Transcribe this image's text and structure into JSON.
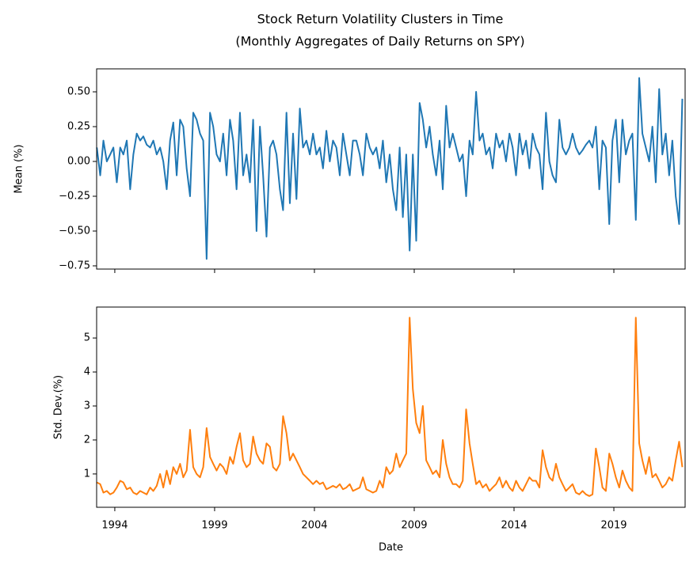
{
  "chart_data": [
    {
      "type": "line",
      "title": "Stock Return Volatility Clusters in Time",
      "subtitle": "(Monthly Aggregates of Daily Returns on SPY)",
      "ylabel": "Mean (%)",
      "x": [
        1993.1,
        1993.27,
        1993.43,
        1993.6,
        1993.77,
        1993.93,
        1994.1,
        1994.27,
        1994.43,
        1994.6,
        1994.77,
        1994.93,
        1995.1,
        1995.27,
        1995.43,
        1995.6,
        1995.77,
        1995.93,
        1996.1,
        1996.27,
        1996.43,
        1996.6,
        1996.77,
        1996.93,
        1997.1,
        1997.27,
        1997.43,
        1997.6,
        1997.77,
        1997.93,
        1998.1,
        1998.27,
        1998.43,
        1998.6,
        1998.77,
        1998.93,
        1999.1,
        1999.27,
        1999.43,
        1999.6,
        1999.77,
        1999.93,
        2000.1,
        2000.27,
        2000.43,
        2000.6,
        2000.77,
        2000.93,
        2001.1,
        2001.27,
        2001.43,
        2001.6,
        2001.77,
        2001.93,
        2002.1,
        2002.27,
        2002.43,
        2002.6,
        2002.77,
        2002.93,
        2003.1,
        2003.27,
        2003.43,
        2003.6,
        2003.77,
        2003.93,
        2004.1,
        2004.27,
        2004.43,
        2004.6,
        2004.77,
        2004.93,
        2005.1,
        2005.27,
        2005.43,
        2005.6,
        2005.77,
        2005.93,
        2006.1,
        2006.27,
        2006.43,
        2006.6,
        2006.77,
        2006.93,
        2007.1,
        2007.27,
        2007.43,
        2007.6,
        2007.77,
        2007.93,
        2008.1,
        2008.27,
        2008.43,
        2008.6,
        2008.77,
        2008.93,
        2009.1,
        2009.27,
        2009.43,
        2009.6,
        2009.77,
        2009.93,
        2010.1,
        2010.27,
        2010.43,
        2010.6,
        2010.77,
        2010.93,
        2011.1,
        2011.27,
        2011.43,
        2011.6,
        2011.77,
        2011.93,
        2012.1,
        2012.27,
        2012.43,
        2012.6,
        2012.77,
        2012.93,
        2013.1,
        2013.27,
        2013.43,
        2013.6,
        2013.77,
        2013.93,
        2014.1,
        2014.27,
        2014.43,
        2014.6,
        2014.77,
        2014.93,
        2015.1,
        2015.27,
        2015.43,
        2015.6,
        2015.77,
        2015.93,
        2016.1,
        2016.27,
        2016.43,
        2016.6,
        2016.77,
        2016.93,
        2017.1,
        2017.27,
        2017.43,
        2017.6,
        2017.77,
        2017.93,
        2018.1,
        2018.27,
        2018.43,
        2018.6,
        2018.77,
        2018.93,
        2019.1,
        2019.27,
        2019.43,
        2019.6,
        2019.77,
        2019.93,
        2020.1,
        2020.27,
        2020.43,
        2020.6,
        2020.77,
        2020.93,
        2021.1,
        2021.27,
        2021.43,
        2021.6,
        2021.77,
        2021.93,
        2022.1,
        2022.27,
        2022.43
      ],
      "series": [
        {
          "color": "#1f77b4",
          "values": [
            0.1,
            -0.1,
            0.15,
            0.0,
            0.05,
            0.1,
            -0.15,
            0.1,
            0.05,
            0.15,
            -0.2,
            0.05,
            0.2,
            0.15,
            0.18,
            0.12,
            0.1,
            0.15,
            0.05,
            0.1,
            0.0,
            -0.2,
            0.15,
            0.28,
            -0.1,
            0.3,
            0.25,
            -0.05,
            -0.25,
            0.35,
            0.3,
            0.2,
            0.15,
            -0.7,
            0.35,
            0.25,
            0.05,
            0.0,
            0.2,
            -0.1,
            0.3,
            0.15,
            -0.2,
            0.35,
            -0.1,
            0.05,
            -0.15,
            0.3,
            -0.5,
            0.25,
            -0.1,
            -0.54,
            0.1,
            0.15,
            0.05,
            -0.2,
            -0.35,
            0.35,
            -0.3,
            0.2,
            -0.27,
            0.38,
            0.1,
            0.15,
            0.05,
            0.2,
            0.05,
            0.1,
            -0.05,
            0.22,
            0.0,
            0.15,
            0.1,
            -0.1,
            0.2,
            0.05,
            -0.1,
            0.15,
            0.15,
            0.05,
            -0.1,
            0.2,
            0.1,
            0.05,
            0.1,
            -0.05,
            0.15,
            -0.15,
            0.05,
            -0.2,
            -0.35,
            0.1,
            -0.4,
            0.05,
            -0.64,
            0.05,
            -0.57,
            0.42,
            0.3,
            0.1,
            0.25,
            0.05,
            -0.1,
            0.15,
            -0.2,
            0.4,
            0.1,
            0.2,
            0.1,
            0.0,
            0.05,
            -0.25,
            0.15,
            0.05,
            0.5,
            0.15,
            0.2,
            0.05,
            0.1,
            -0.05,
            0.2,
            0.1,
            0.15,
            0.0,
            0.2,
            0.1,
            -0.1,
            0.2,
            0.05,
            0.15,
            -0.05,
            0.2,
            0.1,
            0.05,
            -0.2,
            0.35,
            0.0,
            -0.1,
            -0.15,
            0.3,
            0.1,
            0.05,
            0.1,
            0.2,
            0.1,
            0.05,
            0.08,
            0.12,
            0.15,
            0.1,
            0.25,
            -0.2,
            0.15,
            0.1,
            -0.45,
            0.15,
            0.3,
            -0.15,
            0.3,
            0.05,
            0.15,
            0.2,
            -0.42,
            0.6,
            0.2,
            0.1,
            0.0,
            0.25,
            -0.15,
            0.52,
            0.05,
            0.2,
            -0.1,
            0.15,
            -0.25,
            -0.45,
            0.45
          ]
        }
      ],
      "xlim": [
        1993.09,
        2022.57
      ],
      "xticks": [
        1994,
        1999,
        2004,
        2009,
        2014,
        2019
      ],
      "show_xticklabels": false,
      "ylim": [
        -0.773,
        0.665
      ],
      "yticks": [
        {
          "value": -0.75,
          "label": "−0.75"
        },
        {
          "value": -0.5,
          "label": "−0.50"
        },
        {
          "value": -0.25,
          "label": "−0.25"
        },
        {
          "value": 0,
          "label": "0.00"
        },
        0.25,
        {
          "value": 0.5,
          "label": "0.50"
        }
      ]
    },
    {
      "type": "line",
      "ylabel": "Std. Dev.(%)",
      "xlabel": "Date",
      "x": [
        1993.1,
        1993.27,
        1993.43,
        1993.6,
        1993.77,
        1993.93,
        1994.1,
        1994.27,
        1994.43,
        1994.6,
        1994.77,
        1994.93,
        1995.1,
        1995.27,
        1995.43,
        1995.6,
        1995.77,
        1995.93,
        1996.1,
        1996.27,
        1996.43,
        1996.6,
        1996.77,
        1996.93,
        1997.1,
        1997.27,
        1997.43,
        1997.6,
        1997.77,
        1997.93,
        1998.1,
        1998.27,
        1998.43,
        1998.6,
        1998.77,
        1998.93,
        1999.1,
        1999.27,
        1999.43,
        1999.6,
        1999.77,
        1999.93,
        2000.1,
        2000.27,
        2000.43,
        2000.6,
        2000.77,
        2000.93,
        2001.1,
        2001.27,
        2001.43,
        2001.6,
        2001.77,
        2001.93,
        2002.1,
        2002.27,
        2002.43,
        2002.6,
        2002.77,
        2002.93,
        2003.1,
        2003.27,
        2003.43,
        2003.6,
        2003.77,
        2003.93,
        2004.1,
        2004.27,
        2004.43,
        2004.6,
        2004.77,
        2004.93,
        2005.1,
        2005.27,
        2005.43,
        2005.6,
        2005.77,
        2005.93,
        2006.1,
        2006.27,
        2006.43,
        2006.6,
        2006.77,
        2006.93,
        2007.1,
        2007.27,
        2007.43,
        2007.6,
        2007.77,
        2007.93,
        2008.1,
        2008.27,
        2008.43,
        2008.6,
        2008.77,
        2008.93,
        2009.1,
        2009.27,
        2009.43,
        2009.6,
        2009.77,
        2009.93,
        2010.1,
        2010.27,
        2010.43,
        2010.6,
        2010.77,
        2010.93,
        2011.1,
        2011.27,
        2011.43,
        2011.6,
        2011.77,
        2011.93,
        2012.1,
        2012.27,
        2012.43,
        2012.6,
        2012.77,
        2012.93,
        2013.1,
        2013.27,
        2013.43,
        2013.6,
        2013.77,
        2013.93,
        2014.1,
        2014.27,
        2014.43,
        2014.6,
        2014.77,
        2014.93,
        2015.1,
        2015.27,
        2015.43,
        2015.6,
        2015.77,
        2015.93,
        2016.1,
        2016.27,
        2016.43,
        2016.6,
        2016.77,
        2016.93,
        2017.1,
        2017.27,
        2017.43,
        2017.6,
        2017.77,
        2017.93,
        2018.1,
        2018.27,
        2018.43,
        2018.6,
        2018.77,
        2018.93,
        2019.1,
        2019.27,
        2019.43,
        2019.6,
        2019.77,
        2019.93,
        2020.1,
        2020.27,
        2020.43,
        2020.6,
        2020.77,
        2020.93,
        2021.1,
        2021.27,
        2021.43,
        2021.6,
        2021.77,
        2021.93,
        2022.1,
        2022.27,
        2022.43
      ],
      "series": [
        {
          "color": "#ff7f0e",
          "values": [
            0.75,
            0.7,
            0.45,
            0.5,
            0.4,
            0.45,
            0.6,
            0.8,
            0.75,
            0.55,
            0.6,
            0.45,
            0.4,
            0.5,
            0.45,
            0.4,
            0.6,
            0.5,
            0.65,
            1.0,
            0.6,
            1.1,
            0.7,
            1.2,
            1.0,
            1.3,
            0.9,
            1.1,
            2.3,
            1.2,
            1.0,
            0.9,
            1.2,
            2.35,
            1.5,
            1.3,
            1.1,
            1.3,
            1.2,
            1.0,
            1.5,
            1.3,
            1.8,
            2.2,
            1.4,
            1.2,
            1.3,
            2.1,
            1.6,
            1.4,
            1.3,
            1.9,
            1.8,
            1.2,
            1.1,
            1.3,
            2.7,
            2.2,
            1.4,
            1.6,
            1.4,
            1.2,
            1.0,
            0.9,
            0.8,
            0.7,
            0.8,
            0.7,
            0.75,
            0.55,
            0.6,
            0.65,
            0.6,
            0.7,
            0.55,
            0.6,
            0.7,
            0.5,
            0.55,
            0.6,
            0.9,
            0.55,
            0.5,
            0.45,
            0.5,
            0.8,
            0.6,
            1.2,
            1.0,
            1.1,
            1.6,
            1.2,
            1.4,
            1.6,
            5.6,
            3.5,
            2.5,
            2.2,
            3.0,
            1.4,
            1.2,
            1.0,
            1.1,
            0.9,
            2.0,
            1.3,
            0.9,
            0.7,
            0.7,
            0.6,
            0.8,
            2.9,
            1.9,
            1.3,
            0.7,
            0.8,
            0.6,
            0.7,
            0.5,
            0.6,
            0.7,
            0.9,
            0.6,
            0.8,
            0.6,
            0.5,
            0.8,
            0.6,
            0.5,
            0.7,
            0.9,
            0.8,
            0.8,
            0.6,
            1.7,
            1.2,
            0.9,
            0.8,
            1.3,
            0.9,
            0.7,
            0.5,
            0.6,
            0.7,
            0.45,
            0.4,
            0.5,
            0.4,
            0.35,
            0.4,
            1.75,
            1.2,
            0.6,
            0.5,
            1.6,
            1.3,
            0.9,
            0.6,
            1.1,
            0.8,
            0.6,
            0.5,
            5.6,
            1.9,
            1.4,
            1.0,
            1.5,
            0.9,
            1.0,
            0.8,
            0.6,
            0.7,
            0.9,
            0.8,
            1.4,
            1.95,
            1.2
          ]
        }
      ],
      "xlim": [
        1993.09,
        2022.57
      ],
      "xticks": [
        1994,
        1999,
        2004,
        2009,
        2014,
        2019
      ],
      "show_xticklabels": true,
      "ylim": [
        0.02,
        5.91
      ],
      "yticks": [
        1,
        2,
        3,
        4,
        5
      ]
    }
  ]
}
